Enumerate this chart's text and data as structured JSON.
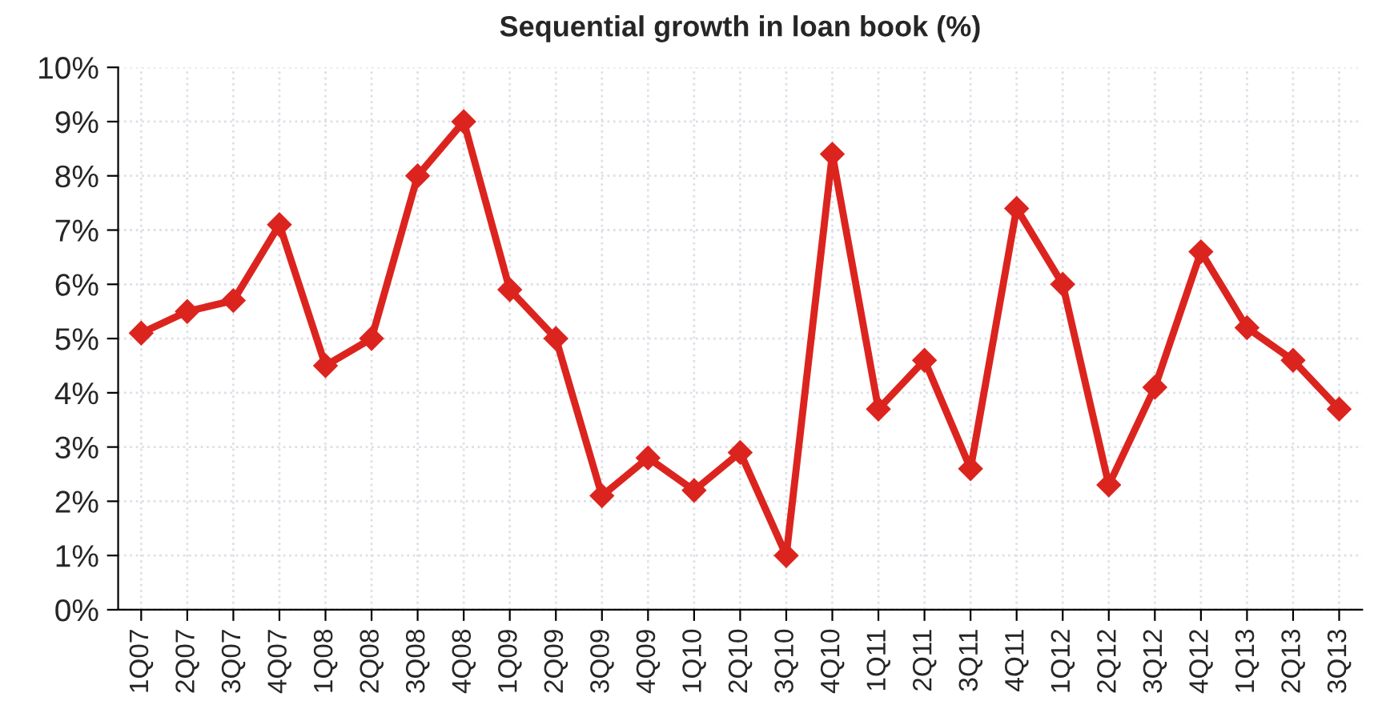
{
  "chart_data": {
    "type": "line",
    "title": "Sequential growth in loan book (%)",
    "categories": [
      "1Q07",
      "2Q07",
      "3Q07",
      "4Q07",
      "1Q08",
      "2Q08",
      "3Q08",
      "4Q08",
      "1Q09",
      "2Q09",
      "3Q09",
      "4Q09",
      "1Q10",
      "2Q10",
      "3Q10",
      "4Q10",
      "1Q11",
      "2Q11",
      "3Q11",
      "4Q11",
      "1Q12",
      "2Q12",
      "3Q12",
      "4Q12",
      "1Q13",
      "2Q13",
      "3Q13"
    ],
    "series": [
      {
        "color": "#dc241f",
        "values": [
          5.1,
          5.5,
          5.7,
          7.1,
          4.5,
          5.0,
          8.0,
          9.0,
          5.9,
          5.0,
          2.1,
          2.8,
          2.2,
          2.9,
          1.0,
          8.4,
          3.7,
          4.6,
          2.6,
          7.4,
          6.0,
          2.3,
          4.1,
          6.6,
          5.2,
          4.6,
          3.7
        ]
      }
    ],
    "ylim": [
      0,
      10
    ],
    "yticks": [
      {
        "value": 0,
        "label": "0%"
      },
      {
        "value": 1,
        "label": "1%"
      },
      {
        "value": 2,
        "label": "2%"
      },
      {
        "value": 3,
        "label": "3%"
      },
      {
        "value": 4,
        "label": "4%"
      },
      {
        "value": 5,
        "label": "5%"
      },
      {
        "value": 6,
        "label": "6%"
      },
      {
        "value": 7,
        "label": "7%"
      },
      {
        "value": 8,
        "label": "8%"
      },
      {
        "value": 9,
        "label": "9%"
      },
      {
        "value": 10,
        "label": "10%"
      }
    ],
    "grid": true,
    "marker": "diamond",
    "line_style": "solid"
  }
}
